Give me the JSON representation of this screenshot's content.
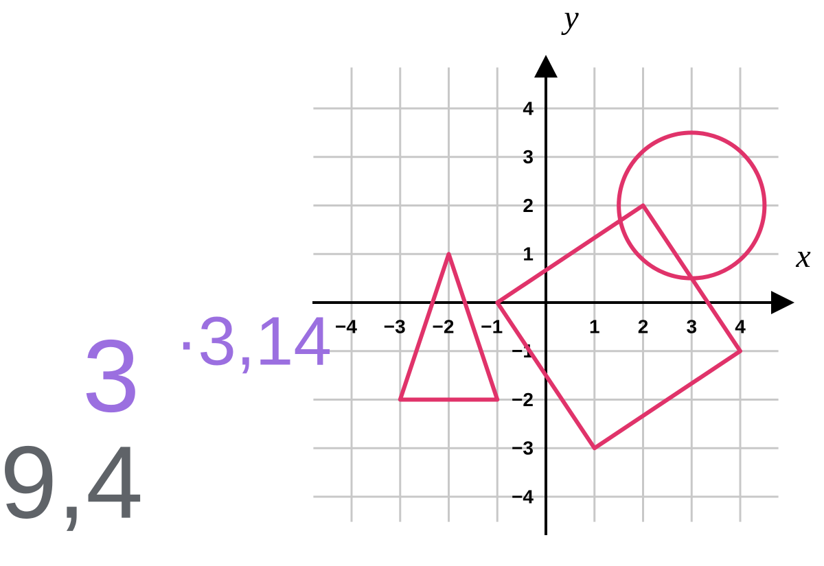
{
  "axes": {
    "x_label": "x",
    "y_label": "y",
    "xlim": [
      -4.8,
      4.8
    ],
    "ylim": [
      -4.8,
      4.8
    ],
    "xticks": [
      {
        "value": -4,
        "label": "−4"
      },
      {
        "value": -3,
        "label": "−3"
      },
      {
        "value": -2,
        "label": "−2"
      },
      {
        "value": -1,
        "label": "−1"
      },
      1,
      2,
      3,
      4
    ],
    "yticks": [
      {
        "value": -4,
        "label": "−4"
      },
      {
        "value": -3,
        "label": "−3"
      },
      {
        "value": -2,
        "label": "−2"
      },
      {
        "value": -1,
        "label": "−1"
      },
      1,
      2,
      3,
      4
    ]
  },
  "shapes": [
    {
      "kind": "polygon",
      "points": [
        [
          -3,
          -2
        ],
        [
          -2,
          1
        ],
        [
          -1,
          -2
        ]
      ]
    },
    {
      "kind": "polygon",
      "points": [
        [
          -1,
          0
        ],
        [
          2,
          2
        ],
        [
          4,
          -1
        ],
        [
          1,
          -3
        ]
      ]
    },
    {
      "kind": "circle",
      "center": [
        3,
        2
      ],
      "radius": 1.5
    }
  ],
  "notes": [
    "3",
    "·3,14",
    "9,4"
  ]
}
